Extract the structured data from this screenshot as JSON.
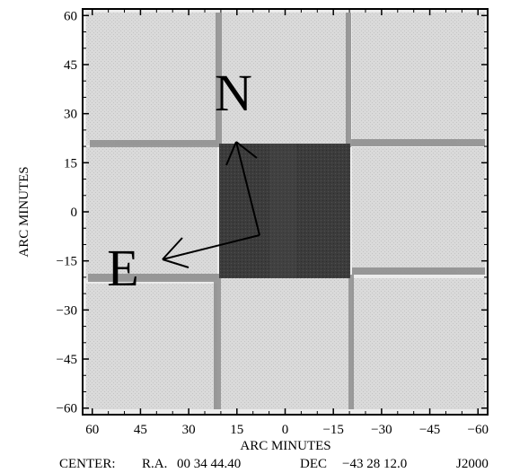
{
  "x_axis": {
    "label": "ARC MINUTES",
    "ticks": [
      {
        "value": 60,
        "label": "60"
      },
      {
        "value": 45,
        "label": "45"
      },
      {
        "value": 30,
        "label": "30"
      },
      {
        "value": 15,
        "label": "15"
      },
      {
        "value": 0,
        "label": "0"
      },
      {
        "value": -15,
        "label": "−15"
      },
      {
        "value": -30,
        "label": "−30"
      },
      {
        "value": -45,
        "label": "−45"
      },
      {
        "value": -60,
        "label": "−60"
      }
    ],
    "range": [
      63,
      -63
    ]
  },
  "y_axis": {
    "label": "ARC MINUTES",
    "ticks": [
      {
        "value": 60,
        "label": "60"
      },
      {
        "value": 45,
        "label": "45"
      },
      {
        "value": 30,
        "label": "30"
      },
      {
        "value": 15,
        "label": "15"
      },
      {
        "value": 0,
        "label": "0"
      },
      {
        "value": -15,
        "label": "−15"
      },
      {
        "value": -30,
        "label": "−30"
      },
      {
        "value": -45,
        "label": "−45"
      },
      {
        "value": -60,
        "label": "−60"
      }
    ],
    "range": [
      -62,
      62
    ]
  },
  "compass": {
    "north_label": "N",
    "east_label": "E"
  },
  "footer": {
    "center_label": "CENTER:",
    "ra_label": "R.A.",
    "ra_value": "00 34 44.40",
    "dec_label": "DEC",
    "dec_value": "−43 28 12.0",
    "epoch": "J2000"
  },
  "colors": {
    "background": "#ffffff",
    "frame": "#000000",
    "field_light": "#d6d6d6",
    "field_dark": "#3a3a3a",
    "seam": "#8a8a8a"
  }
}
